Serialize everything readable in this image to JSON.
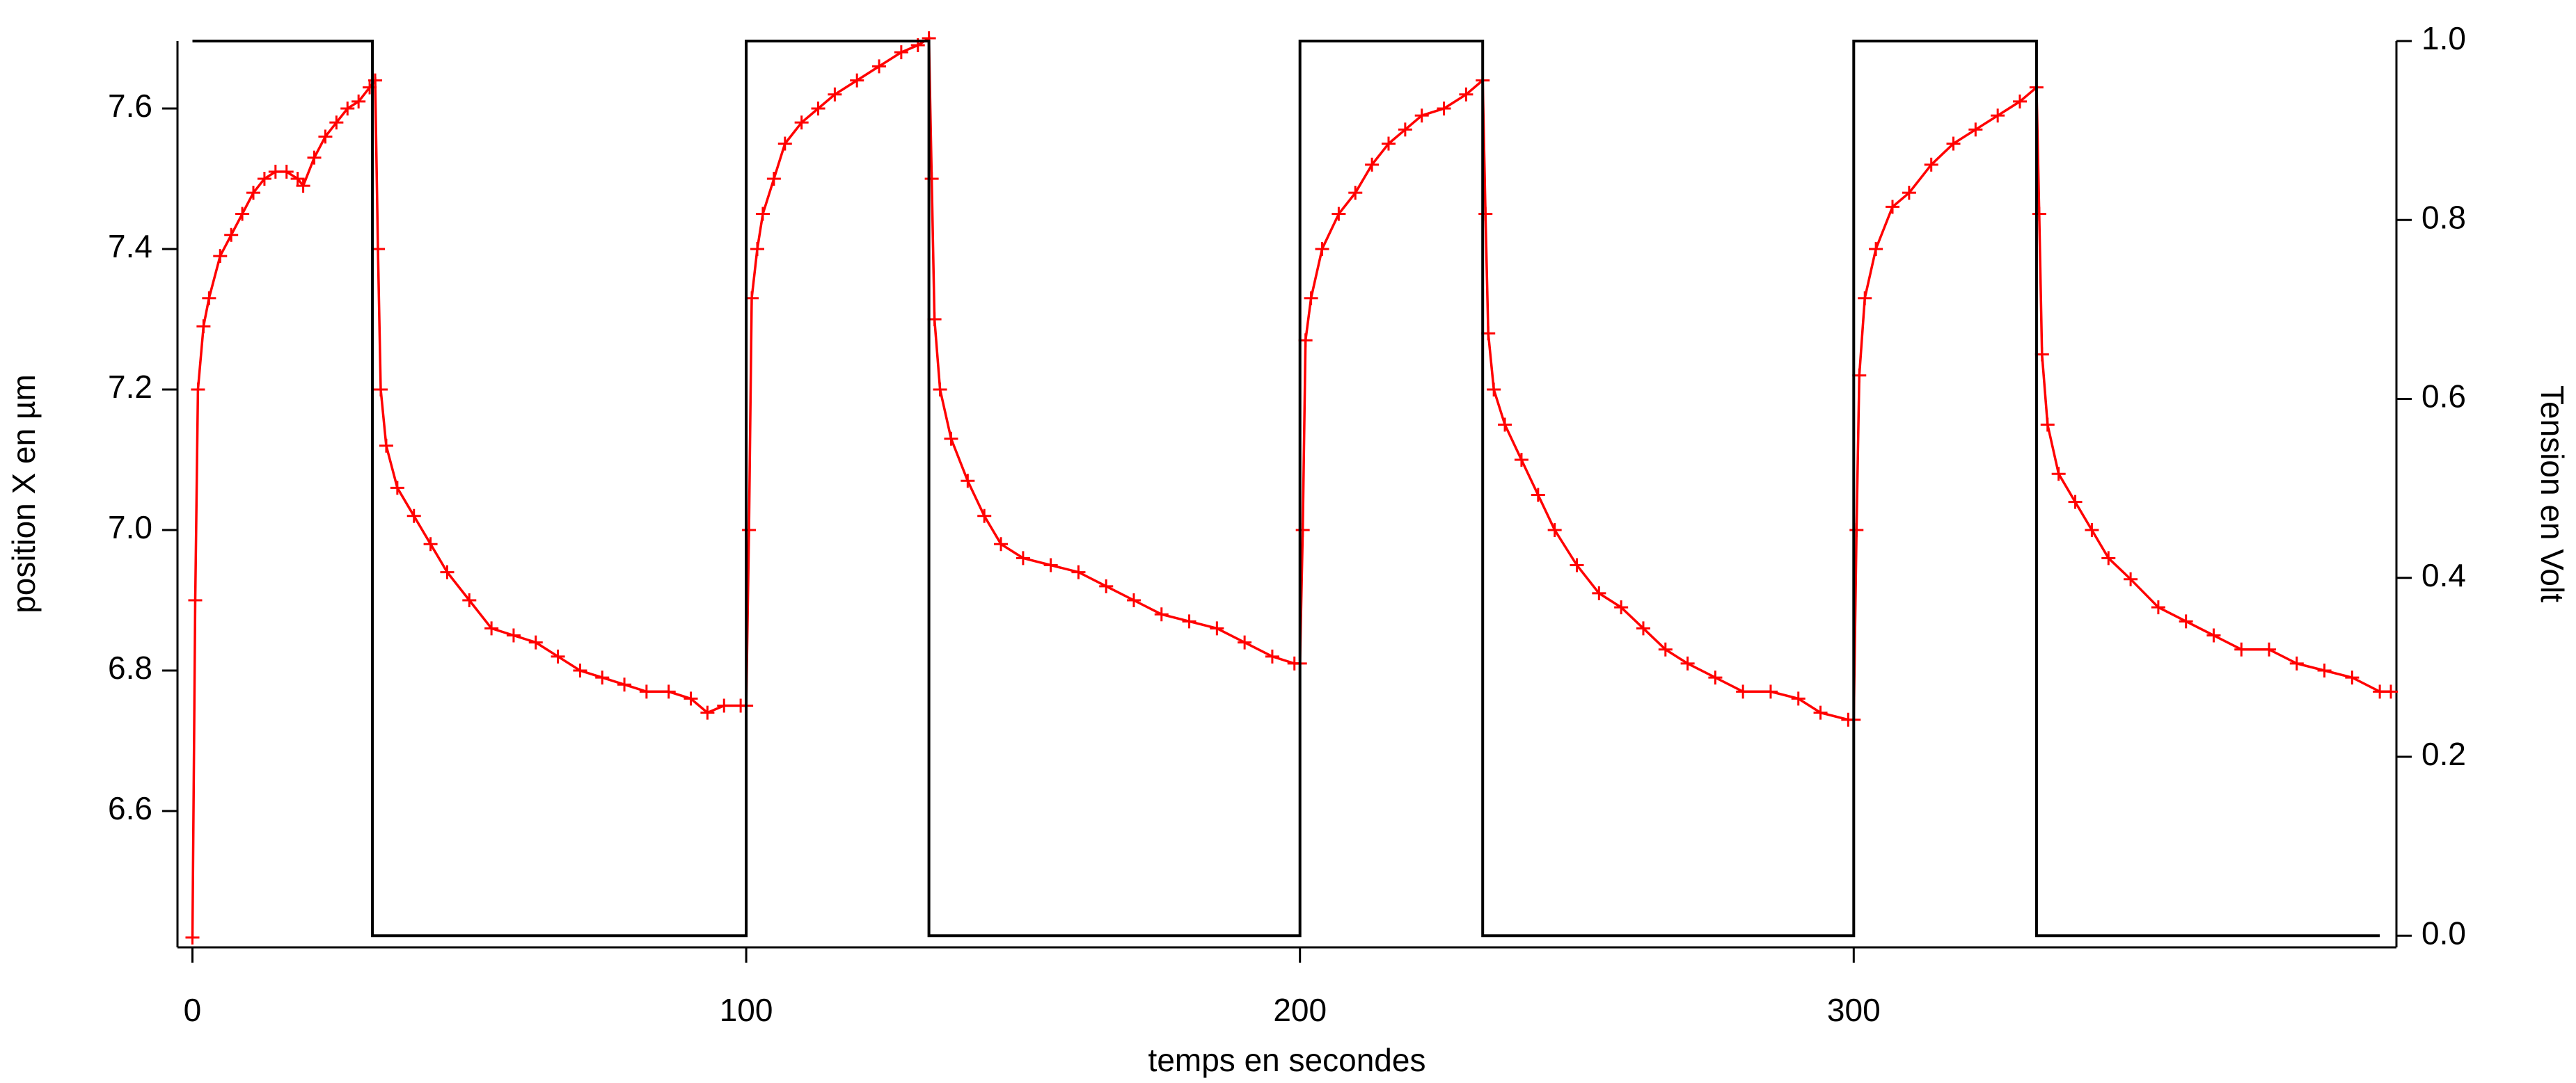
{
  "chart_data": {
    "type": "line",
    "xlabel": "temps en secondes",
    "ylabel": "position X en µm",
    "y2label": "Tension en Volt",
    "xlim": [
      -2.7,
      398
    ],
    "xticks": [
      0,
      100,
      200,
      300
    ],
    "ylim": [
      6.406,
      7.696
    ],
    "yticks": [
      6.6,
      6.8,
      {
        "value": 7,
        "label": "7.0"
      },
      7.2,
      7.4,
      7.6
    ],
    "y2lim": [
      -0.013,
      1.0
    ],
    "y2ticks": [
      {
        "value": 0,
        "label": "0.0"
      },
      0.2,
      0.4,
      0.6,
      0.8,
      {
        "value": 1,
        "label": "1.0"
      }
    ],
    "series": [
      {
        "color": "#ff0000",
        "marker": "+",
        "x": [
          0,
          0.5,
          1,
          2,
          3,
          5,
          7,
          9,
          11,
          13,
          15,
          17,
          19,
          20,
          22,
          24,
          26,
          28,
          30,
          32,
          33,
          33.5,
          34,
          35,
          37,
          40,
          43,
          46,
          50,
          54,
          58,
          62,
          66,
          70,
          74,
          78,
          82,
          86,
          90,
          93,
          96,
          99,
          100,
          100.5,
          101,
          102,
          103,
          105,
          107,
          110,
          113,
          116,
          120,
          124,
          128,
          131,
          133,
          133.5,
          134,
          135,
          137,
          140,
          143,
          146,
          150,
          155,
          160,
          165,
          170,
          175,
          180,
          185,
          190,
          195,
          199,
          200,
          200.5,
          201,
          202,
          204,
          207,
          210,
          213,
          216,
          219,
          222,
          226,
          230,
          233,
          233.5,
          234,
          235,
          237,
          240,
          243,
          246,
          250,
          254,
          258,
          262,
          266,
          270,
          275,
          280,
          285,
          290,
          294,
          299,
          300,
          300.5,
          301,
          302,
          304,
          307,
          310,
          314,
          318,
          322,
          326,
          330,
          333,
          333.5,
          334,
          335,
          337,
          340,
          343,
          346,
          350,
          355,
          360,
          365,
          370,
          375,
          380,
          385,
          390,
          395,
          397
        ],
        "values": [
          6.42,
          6.9,
          7.2,
          7.29,
          7.33,
          7.39,
          7.42,
          7.45,
          7.48,
          7.5,
          7.51,
          7.51,
          7.5,
          7.49,
          7.53,
          7.56,
          7.58,
          7.6,
          7.61,
          7.63,
          7.64,
          7.4,
          7.2,
          7.12,
          7.06,
          7.02,
          6.98,
          6.94,
          6.9,
          6.86,
          6.85,
          6.84,
          6.82,
          6.8,
          6.79,
          6.78,
          6.77,
          6.77,
          6.76,
          6.74,
          6.75,
          6.75,
          6.75,
          7.0,
          7.33,
          7.4,
          7.45,
          7.5,
          7.55,
          7.58,
          7.6,
          7.62,
          7.64,
          7.66,
          7.68,
          7.69,
          7.7,
          7.5,
          7.3,
          7.2,
          7.13,
          7.07,
          7.02,
          6.98,
          6.96,
          6.95,
          6.94,
          6.92,
          6.9,
          6.88,
          6.87,
          6.86,
          6.84,
          6.82,
          6.81,
          6.81,
          7.0,
          7.27,
          7.33,
          7.4,
          7.45,
          7.48,
          7.52,
          7.55,
          7.57,
          7.59,
          7.6,
          7.62,
          7.64,
          7.45,
          7.28,
          7.2,
          7.15,
          7.1,
          7.05,
          7.0,
          6.95,
          6.91,
          6.89,
          6.86,
          6.83,
          6.81,
          6.79,
          6.77,
          6.77,
          6.76,
          6.74,
          6.73,
          6.73,
          7.0,
          7.22,
          7.33,
          7.4,
          7.46,
          7.48,
          7.52,
          7.55,
          7.57,
          7.59,
          7.61,
          7.63,
          7.45,
          7.25,
          7.15,
          7.08,
          7.04,
          7.0,
          6.96,
          6.93,
          6.89,
          6.87,
          6.85,
          6.83,
          6.83,
          6.81,
          6.8,
          6.79,
          6.77,
          6.77
        ]
      },
      {
        "color": "#000000",
        "axis": "y2",
        "x": [
          0,
          32.5,
          32.5,
          100,
          100,
          133,
          133,
          200,
          200,
          233,
          233,
          300,
          300,
          333,
          333,
          395
        ],
        "values": [
          1,
          1,
          0,
          0,
          1,
          1,
          0,
          0,
          1,
          1,
          0,
          0,
          1,
          1,
          0,
          0
        ]
      }
    ]
  }
}
